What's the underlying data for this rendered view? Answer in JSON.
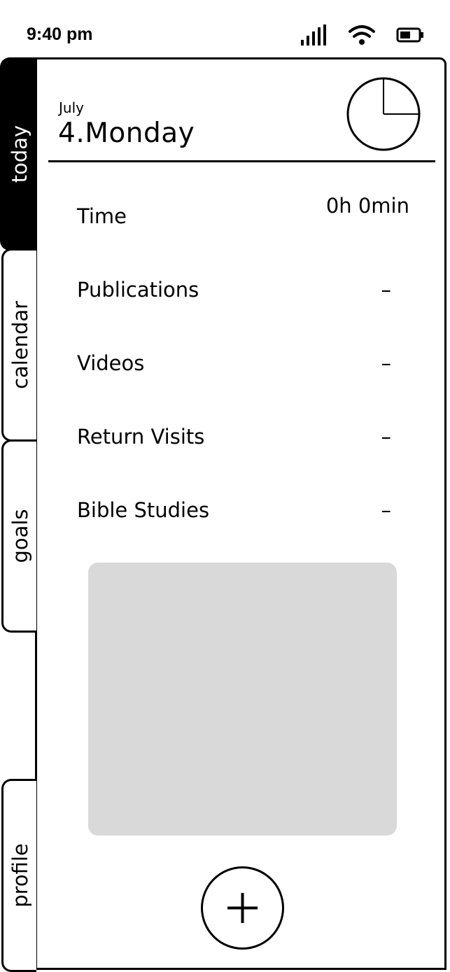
{
  "status_bar": {
    "time": "9:40 pm",
    "icons": [
      "signal-icon",
      "wifi-icon",
      "battery-icon"
    ]
  },
  "tabs": [
    {
      "label": "today",
      "active": true
    },
    {
      "label": "calendar",
      "active": false
    },
    {
      "label": "goals",
      "active": false
    },
    {
      "label": "profile",
      "active": false
    }
  ],
  "header": {
    "month": "July",
    "day": "4.Monday"
  },
  "stats": [
    {
      "label": "Time",
      "value": "0h 0min"
    },
    {
      "label": "Publications",
      "value": "–"
    },
    {
      "label": "Videos",
      "value": "–"
    },
    {
      "label": "Return Visits",
      "value": "–"
    },
    {
      "label": "Bible Studies",
      "value": "–"
    }
  ],
  "add_button": {
    "icon": "plus-icon"
  },
  "colors": {
    "placeholder": "#d9d9d9",
    "active_tab": "#000000"
  }
}
